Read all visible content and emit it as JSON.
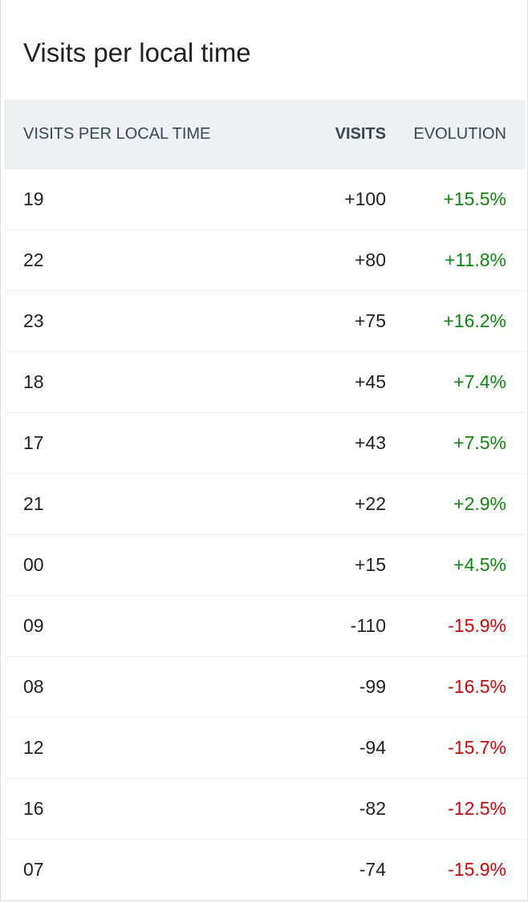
{
  "title": "Visits per local time",
  "table": {
    "headers": [
      "VISITS PER LOCAL TIME",
      "VISITS",
      "EVOLUTION"
    ],
    "rows": [
      [
        "19",
        "+100",
        "+15.5%"
      ],
      [
        "22",
        "+80",
        "+11.8%"
      ],
      [
        "23",
        "+75",
        "+16.2%"
      ],
      [
        "18",
        "+45",
        "+7.4%"
      ],
      [
        "17",
        "+43",
        "+7.5%"
      ],
      [
        "21",
        "+22",
        "+2.9%"
      ],
      [
        "00",
        "+15",
        "+4.5%"
      ],
      [
        "09",
        "-110",
        "-15.9%"
      ],
      [
        "08",
        "-99",
        "-16.5%"
      ],
      [
        "12",
        "-94",
        "-15.7%"
      ],
      [
        "16",
        "-82",
        "-12.5%"
      ],
      [
        "07",
        "-74",
        "-15.9%"
      ]
    ]
  }
}
